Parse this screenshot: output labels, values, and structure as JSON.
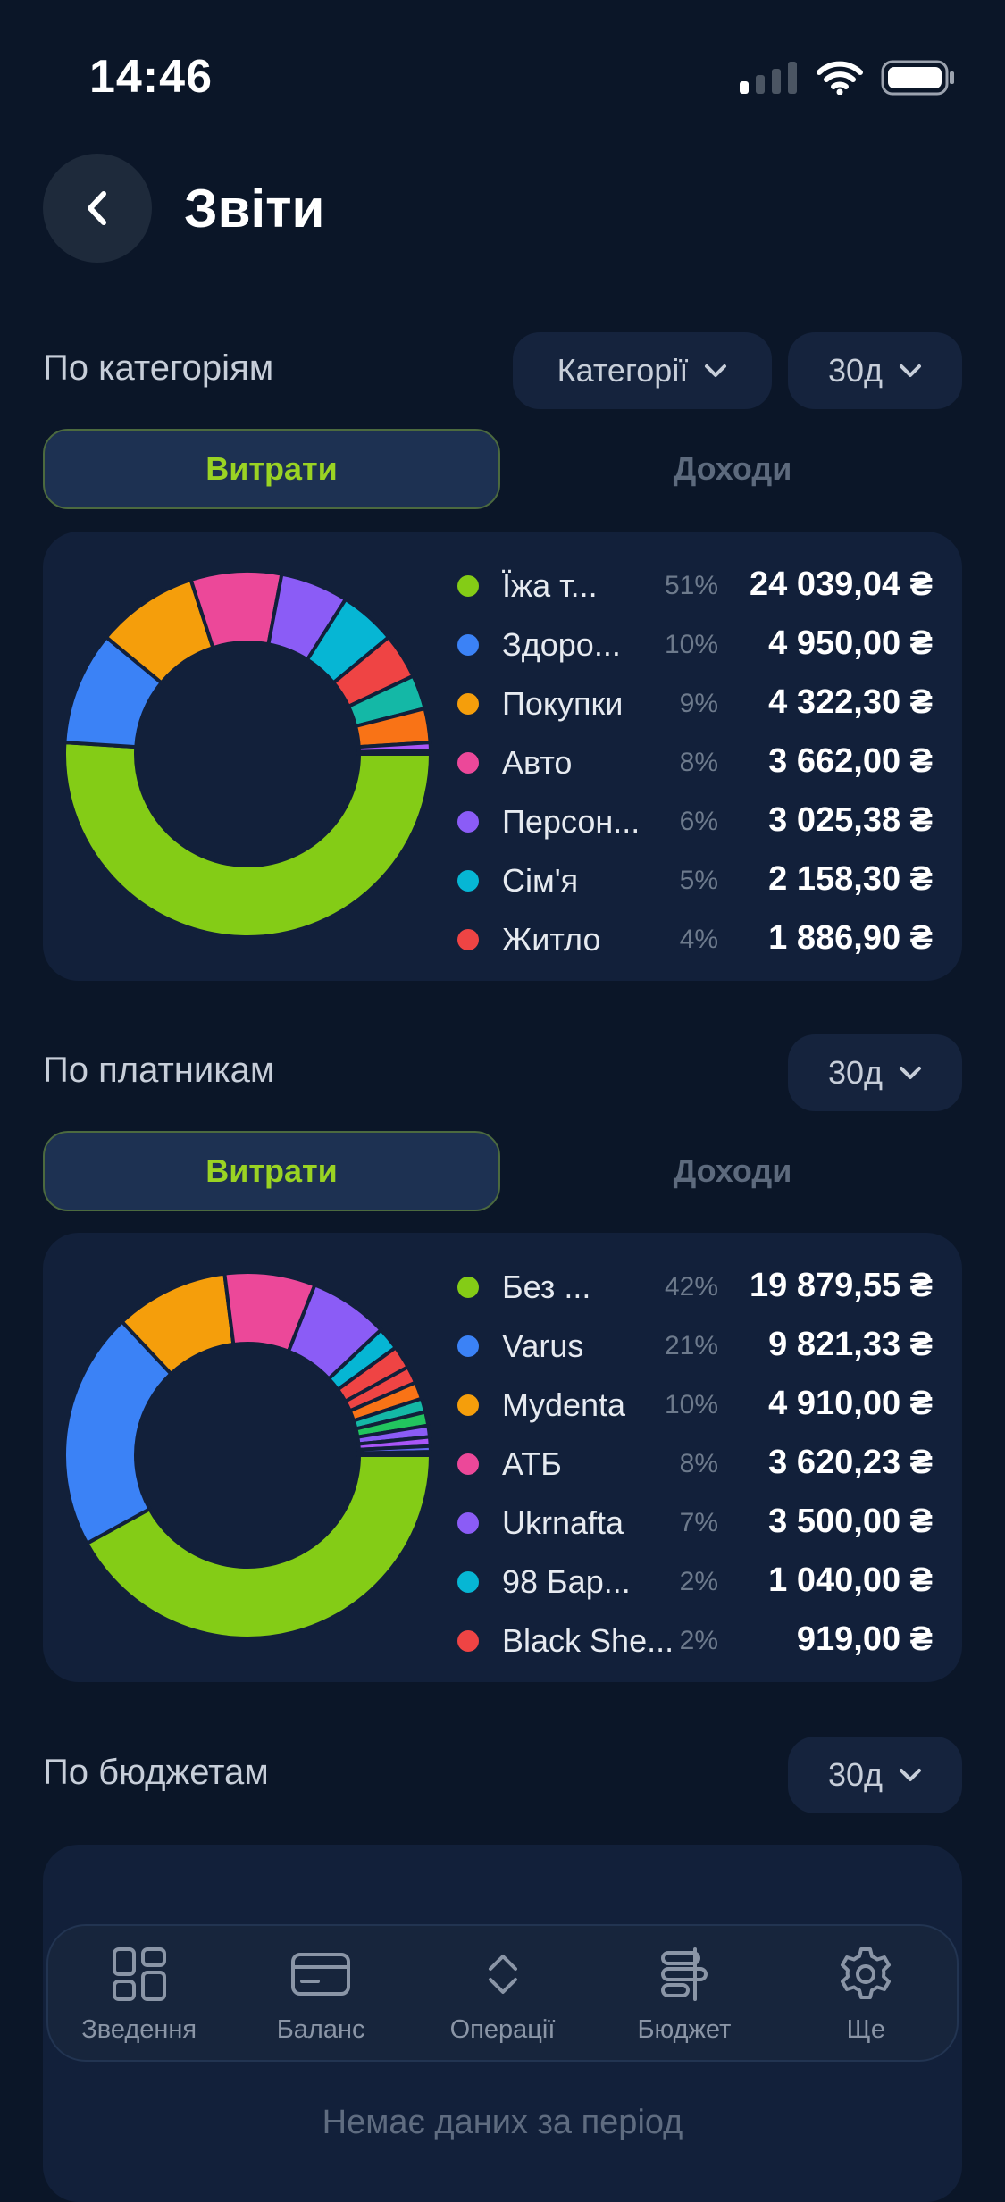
{
  "status_bar": {
    "time": "14:46"
  },
  "header": {
    "title": "Звіти"
  },
  "sections": {
    "by_category": {
      "title": "По категоріям",
      "filter_label": "Категорії",
      "period_label": "30д",
      "tabs": {
        "expenses": "Витрати",
        "income": "Доходи"
      },
      "legend": [
        {
          "name": "Їжа т...",
          "pct": "51%",
          "amount": "24 039,04 ₴",
          "color": "#84cc16"
        },
        {
          "name": "Здоро...",
          "pct": "10%",
          "amount": "4 950,00 ₴",
          "color": "#3b82f6"
        },
        {
          "name": "Покупки",
          "pct": "9%",
          "amount": "4 322,30 ₴",
          "color": "#f59e0b"
        },
        {
          "name": "Авто",
          "pct": "8%",
          "amount": "3 662,00 ₴",
          "color": "#ec4899"
        },
        {
          "name": "Персон...",
          "pct": "6%",
          "amount": "3 025,38 ₴",
          "color": "#8b5cf6"
        },
        {
          "name": "Сім'я",
          "pct": "5%",
          "amount": "2 158,30 ₴",
          "color": "#06b6d4"
        },
        {
          "name": "Житло",
          "pct": "4%",
          "amount": "1 886,90 ₴",
          "color": "#ef4444"
        }
      ]
    },
    "by_payer": {
      "title": "По платникам",
      "period_label": "30д",
      "tabs": {
        "expenses": "Витрати",
        "income": "Доходи"
      },
      "legend": [
        {
          "name": "Без ...",
          "pct": "42%",
          "amount": "19 879,55 ₴",
          "color": "#84cc16"
        },
        {
          "name": "Varus",
          "pct": "21%",
          "amount": "9 821,33 ₴",
          "color": "#3b82f6"
        },
        {
          "name": "Mydenta",
          "pct": "10%",
          "amount": "4 910,00 ₴",
          "color": "#f59e0b"
        },
        {
          "name": "АТБ",
          "pct": "8%",
          "amount": "3 620,23 ₴",
          "color": "#ec4899"
        },
        {
          "name": "Ukrnafta",
          "pct": "7%",
          "amount": "3 500,00 ₴",
          "color": "#8b5cf6"
        },
        {
          "name": "98 Бар...",
          "pct": "2%",
          "amount": "1 040,00 ₴",
          "color": "#06b6d4"
        },
        {
          "name": "Black She...",
          "pct": "2%",
          "amount": "919,00 ₴",
          "color": "#ef4444"
        }
      ]
    },
    "by_budget": {
      "title": "По бюджетам",
      "period_label": "30д",
      "empty_text": "Немає даних за період"
    }
  },
  "tabbar": [
    {
      "label": "Зведення",
      "icon": "dashboard-icon"
    },
    {
      "label": "Баланс",
      "icon": "card-icon"
    },
    {
      "label": "Операції",
      "icon": "sort-arrows-icon"
    },
    {
      "label": "Бюджет",
      "icon": "budget-icon"
    },
    {
      "label": "Ще",
      "icon": "gear-icon"
    }
  ],
  "chart_data": [
    {
      "type": "pie",
      "categories": [
        "Їжа т...",
        "Здоро...",
        "Покупки",
        "Авто",
        "Персон...",
        "Сім'я",
        "Житло",
        "",
        "",
        "",
        ""
      ],
      "values": [
        51,
        10,
        9,
        8,
        6,
        5,
        4,
        3,
        3,
        0.7,
        0.3
      ],
      "colors": [
        "#84cc16",
        "#3b82f6",
        "#f59e0b",
        "#ec4899",
        "#8b5cf6",
        "#06b6d4",
        "#ef4444",
        "#14b8a6",
        "#f97316",
        "#a855f7",
        "#6366f1"
      ]
    },
    {
      "type": "pie",
      "categories": [
        "Без ...",
        "Varus",
        "Mydenta",
        "АТБ",
        "Ukrnafta",
        "98 Бар...",
        "Black She...",
        "",
        "",
        "",
        "",
        "",
        "",
        "",
        ""
      ],
      "values": [
        42,
        21,
        10,
        8,
        7,
        2,
        2,
        1.5,
        1.5,
        1.2,
        1.2,
        1,
        0.8,
        0.5,
        0.3
      ],
      "colors": [
        "#84cc16",
        "#3b82f6",
        "#f59e0b",
        "#ec4899",
        "#8b5cf6",
        "#06b6d4",
        "#ef4444",
        "#ef4444",
        "#f97316",
        "#14b8a6",
        "#22c55e",
        "#8b5cf6",
        "#a855f7",
        "#6366f1",
        "#3b82f6"
      ]
    }
  ]
}
